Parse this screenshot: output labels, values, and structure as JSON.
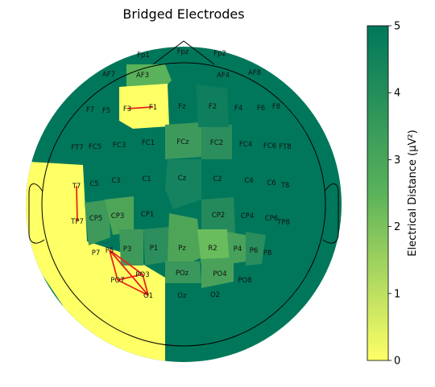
{
  "chart_data": {
    "type": "heatmap",
    "title": "Bridged Electrodes",
    "colorbar": {
      "label": "Electrical Distance (µV²)",
      "range": [
        0,
        5
      ],
      "ticks": [
        "0",
        "1",
        "2",
        "3",
        "4",
        "5"
      ],
      "colormap": [
        "#ffff66",
        "#5ab25a",
        "#00775b"
      ]
    },
    "electrodes": [
      "Fp1",
      "Fpz",
      "Fp2",
      "AF7",
      "AF3",
      "AF4",
      "AF8",
      "F7",
      "F5",
      "F3",
      "F1",
      "Fz",
      "F2",
      "F4",
      "F6",
      "F8",
      "FT7",
      "FC5",
      "FC3",
      "FC1",
      "FCz",
      "FC2",
      "FC4",
      "FC6",
      "FT8",
      "T7",
      "C5",
      "C3",
      "C1",
      "Cz",
      "C2",
      "C4",
      "C6",
      "T8",
      "TP7",
      "CP5",
      "CP3",
      "CP1",
      "CP2",
      "CP4",
      "CP6",
      "TP8",
      "P7",
      "P5",
      "P3",
      "P1",
      "Pz",
      "R2",
      "P4",
      "P6",
      "P8",
      "PO7",
      "PO3",
      "POz",
      "PO4",
      "PO8",
      "O1",
      "Oz",
      "O2"
    ],
    "bridged_pairs": [
      [
        "F3",
        "F1"
      ],
      [
        "T7",
        "TP7"
      ],
      [
        "P5",
        "PO3"
      ],
      [
        "P5",
        "PO7"
      ],
      [
        "P5",
        "O1"
      ],
      [
        "PO7",
        "PO3"
      ],
      [
        "PO7",
        "O1"
      ],
      [
        "PO3",
        "O1"
      ]
    ]
  }
}
